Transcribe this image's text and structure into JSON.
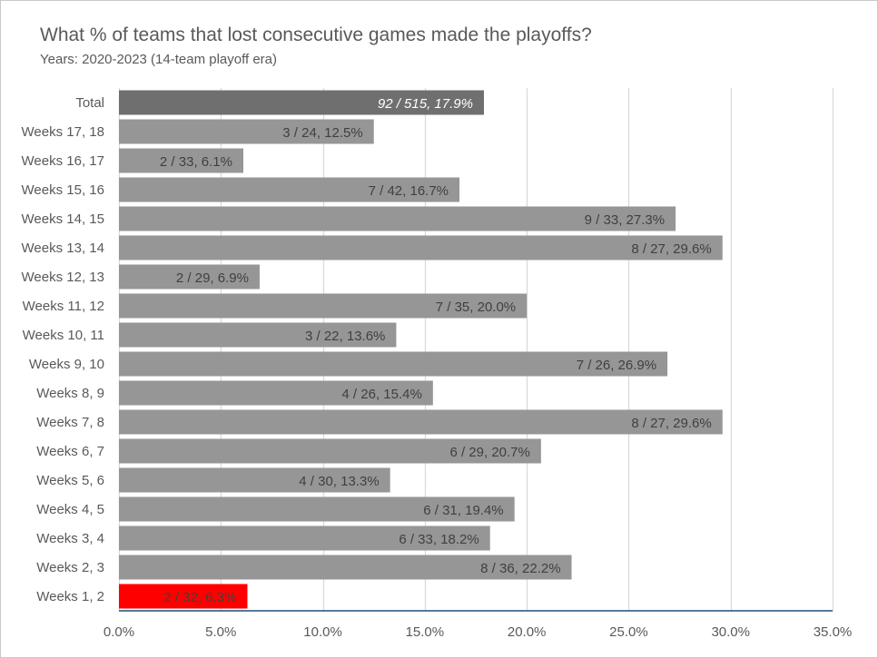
{
  "colors": {
    "bar": "#969696",
    "total_bar": "#6f6f6f",
    "highlight_bar": "#ff0000",
    "grid": "#d9d9d9",
    "axis": "#1f4e79",
    "text": "#595959"
  },
  "chart_data": {
    "type": "bar",
    "orientation": "horizontal",
    "title": "What % of teams that lost consecutive games made the playoffs?",
    "subtitle": "Years: 2020-2023 (14-team playoff era)",
    "xlim": [
      0,
      35
    ],
    "ticks": [
      "0.0%",
      "5.0%",
      "10.0%",
      "15.0%",
      "20.0%",
      "25.0%",
      "30.0%",
      "35.0%"
    ],
    "tick_values": [
      0,
      5,
      10,
      15,
      20,
      25,
      30,
      35
    ],
    "grid": true,
    "categories": [
      "Total",
      "Weeks 17, 18",
      "Weeks 16, 17",
      "Weeks 15, 16",
      "Weeks 14, 15",
      "Weeks 13, 14",
      "Weeks 12, 13",
      "Weeks 11, 12",
      "Weeks 10, 11",
      "Weeks 9, 10",
      "Weeks 8, 9",
      "Weeks 7, 8",
      "Weeks 6, 7",
      "Weeks 5, 6",
      "Weeks 4, 5",
      "Weeks 3, 4",
      "Weeks 2, 3",
      "Weeks 1, 2"
    ],
    "values": [
      17.9,
      12.5,
      6.1,
      16.7,
      27.3,
      29.6,
      6.9,
      20.0,
      13.6,
      26.9,
      15.4,
      29.6,
      20.7,
      13.3,
      19.4,
      18.2,
      22.2,
      6.3
    ],
    "labels": [
      "92 / 515, 17.9%",
      "3 / 24, 12.5%",
      "2 / 33, 6.1%",
      "7 / 42, 16.7%",
      "9 / 33, 27.3%",
      "8 / 27, 29.6%",
      "2 / 29, 6.9%",
      "7 / 35, 20.0%",
      "3 / 22, 13.6%",
      "7 / 26, 26.9%",
      "4 / 26, 15.4%",
      "8 / 27, 29.6%",
      "6 / 29, 20.7%",
      "4 / 30, 13.3%",
      "6 / 31, 19.4%",
      "6 / 33, 18.2%",
      "8 / 36, 22.2%",
      "2 / 32, 6.3%"
    ],
    "highlight": [
      "Total",
      "Weeks 1, 2"
    ]
  }
}
